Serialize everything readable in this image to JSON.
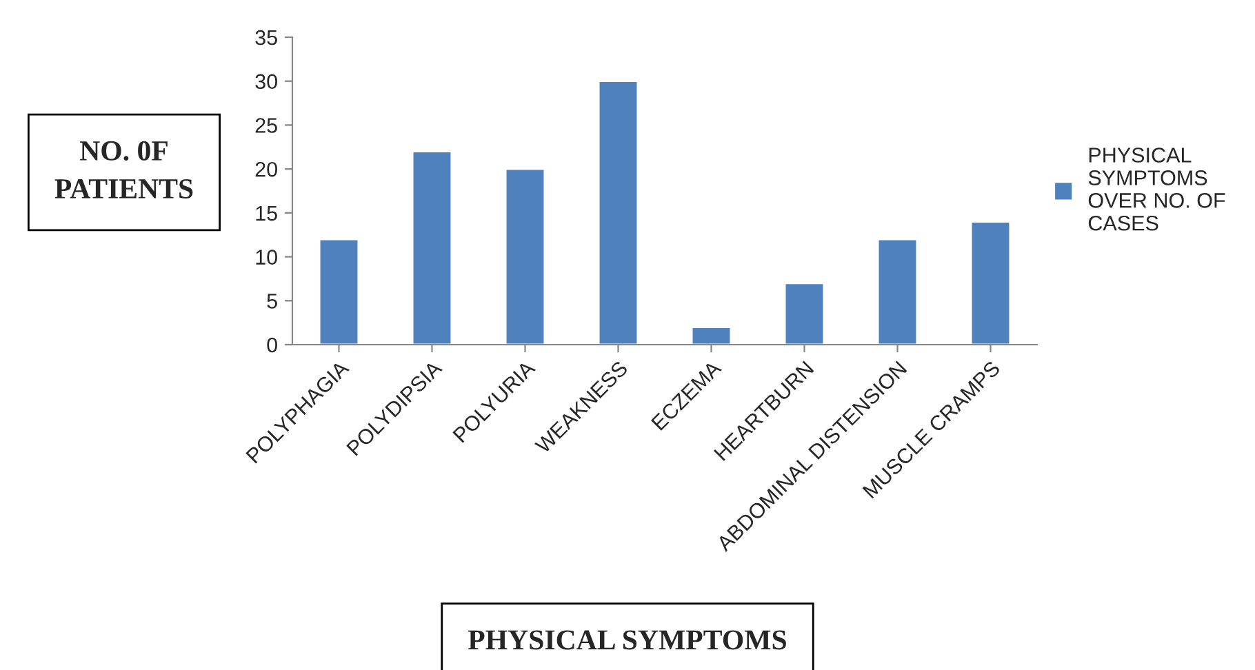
{
  "chart_data": {
    "type": "bar",
    "xlabel": "PHYSICAL SYMPTOMS",
    "ylabel": "NO. 0F PATIENTS",
    "categories": [
      "POLYPHAGIA",
      "POLYDIPSIA",
      "POLYURIA",
      "WEAKNESS",
      "ECZEMA",
      "HEARTBURN",
      "ABDOMINAL DISTENSION",
      "MUSCLE CRAMPS"
    ],
    "series": [
      {
        "name": "PHYSICAL SYMPTOMS OVER NO. OF CASES",
        "color": "#4f81bd",
        "values": [
          12,
          22,
          20,
          30,
          2,
          7,
          12,
          14
        ]
      }
    ],
    "ylim": [
      0,
      35
    ],
    "yticks": [
      0,
      5,
      10,
      15,
      20,
      25,
      30,
      35
    ],
    "grid": false,
    "legend": "right"
  }
}
